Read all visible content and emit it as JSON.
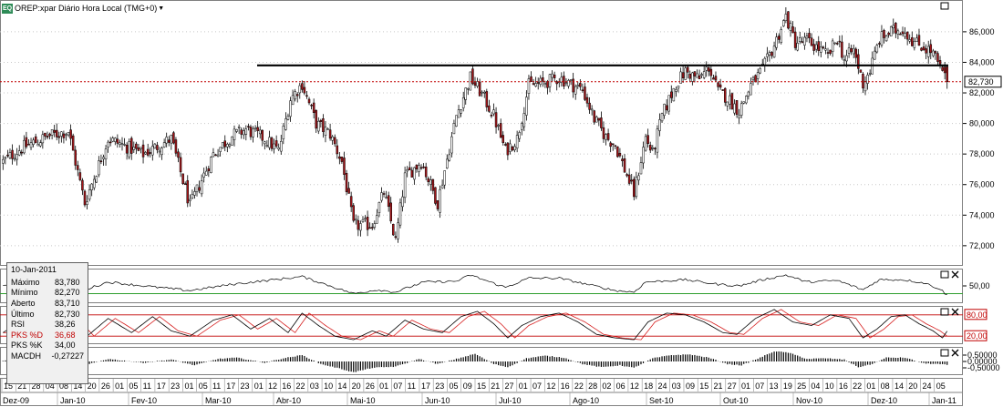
{
  "title": "OREP:xpar Diário Hora Local (TMG+0)",
  "app_icon": "EQ",
  "colors": {
    "bull": "#ffffff",
    "bear": "#a4161a",
    "wick": "#000000",
    "support_line": "#000000",
    "last_price_line": "#c00000",
    "rsi_line": "#000000",
    "rsi_level": "#2e9e2e",
    "stoch_k": "#000000",
    "stoch_d": "#d62020",
    "stoch_levels": "#c00000",
    "macd_hist": "#000000"
  },
  "info": {
    "date": "10-Jan-2011",
    "rows": [
      {
        "label": "Máximo",
        "value": "83,780",
        "highlight": false
      },
      {
        "label": "Mínimo",
        "value": "82,270",
        "highlight": false
      },
      {
        "label": "Aberto",
        "value": "83,710",
        "highlight": false
      },
      {
        "label": "Último",
        "value": "82,730",
        "highlight": false
      },
      {
        "label": "RSI",
        "value": "38,26",
        "highlight": false
      },
      {
        "label": "PKS %D",
        "value": "36,68",
        "highlight": true
      },
      {
        "label": "PKS %K",
        "value": "34,00",
        "highlight": false
      },
      {
        "label": "MACDH",
        "value": "-0,27227",
        "highlight": false
      }
    ]
  },
  "last_price_label": "82,730",
  "chart_data": {
    "type": "candlestick",
    "price_axis": {
      "ylim": [
        70.8,
        87.9
      ],
      "ticks": [
        "72,000",
        "74,000",
        "76,000",
        "78,000",
        "80,000",
        "82,000",
        "84,000",
        "86,000"
      ],
      "tick_values": [
        72,
        74,
        76,
        78,
        80,
        82,
        84,
        86
      ]
    },
    "support_level": 83.8,
    "last_price": 82.73,
    "rsi": {
      "ylim": [
        30,
        70
      ],
      "tick_label": "50,00",
      "tick_value": 50,
      "level": 40
    },
    "stochastic": {
      "ylim": [
        0,
        100
      ],
      "upper_label": "80,00",
      "lower_label": "20,00",
      "upper": 80,
      "lower": 20
    },
    "macd": {
      "ylim": [
        -1.0,
        1.0
      ],
      "tick_labels": [
        "0,50000",
        "0,00000",
        "-0,50000"
      ],
      "tick_values": [
        0.5,
        0.0,
        -0.5
      ]
    },
    "day_labels": [
      "15",
      "21",
      "28",
      "04",
      "08",
      "14",
      "20",
      "26",
      "01",
      "05",
      "11",
      "17",
      "23",
      "01",
      "05",
      "11",
      "17",
      "23",
      "01",
      "12",
      "16",
      "22",
      "03",
      "10",
      "14",
      "20",
      "26",
      "01",
      "07",
      "11",
      "17",
      "23",
      "05",
      "09",
      "15",
      "21",
      "27",
      "01",
      "07",
      "12",
      "16",
      "22",
      "28",
      "02",
      "06",
      "12",
      "18",
      "24",
      "03",
      "09",
      "15",
      "21",
      "27",
      "01",
      "07",
      "13",
      "19",
      "25",
      "04",
      "10",
      "16",
      "22",
      "01",
      "08",
      "14",
      "20",
      "24",
      "05"
    ],
    "month_labels": [
      "Dez-09",
      "Jan-10",
      "Fev-10",
      "Mar-10",
      "Abr-10",
      "Mai-10",
      "Jun-10",
      "Jul-10",
      "Ago-10",
      "Set-10",
      "Out-10",
      "Nov-10",
      "Dez-10",
      "Jan-11"
    ],
    "close_anchors": [
      [
        0,
        77.5
      ],
      [
        8,
        78.4
      ],
      [
        20,
        79.2
      ],
      [
        28,
        79.5
      ],
      [
        35,
        74.8
      ],
      [
        45,
        79.0
      ],
      [
        60,
        78.0
      ],
      [
        72,
        79.0
      ],
      [
        80,
        74.6
      ],
      [
        90,
        78.0
      ],
      [
        98,
        79.2
      ],
      [
        104,
        79.6
      ],
      [
        112,
        79.0
      ],
      [
        118,
        78.2
      ],
      [
        123,
        81.6
      ],
      [
        128,
        82.6
      ],
      [
        134,
        80.0
      ],
      [
        140,
        79.3
      ],
      [
        145,
        77.5
      ],
      [
        150,
        73.3
      ],
      [
        158,
        73.4
      ],
      [
        163,
        75.5
      ],
      [
        168,
        72.3
      ],
      [
        172,
        76.5
      ],
      [
        179,
        77.5
      ],
      [
        186,
        74.8
      ],
      [
        194,
        80.5
      ],
      [
        200,
        83.0
      ],
      [
        205,
        81.9
      ],
      [
        210,
        80.5
      ],
      [
        215,
        78.2
      ],
      [
        220,
        79.0
      ],
      [
        225,
        82.5
      ],
      [
        230,
        82.6
      ],
      [
        238,
        83.0
      ],
      [
        244,
        82.5
      ],
      [
        248,
        82.2
      ],
      [
        253,
        80.3
      ],
      [
        258,
        79.1
      ],
      [
        262,
        78.6
      ],
      [
        266,
        77.0
      ],
      [
        270,
        75.4
      ],
      [
        275,
        79.1
      ],
      [
        278,
        78.0
      ],
      [
        282,
        80.5
      ],
      [
        288,
        82.6
      ],
      [
        292,
        83.4
      ],
      [
        298,
        82.9
      ],
      [
        302,
        83.7
      ],
      [
        306,
        82.1
      ],
      [
        310,
        81.7
      ],
      [
        315,
        80.8
      ],
      [
        320,
        82.5
      ],
      [
        325,
        83.5
      ],
      [
        330,
        85.1
      ],
      [
        335,
        87.0
      ],
      [
        339,
        85.3
      ],
      [
        344,
        85.4
      ],
      [
        349,
        84.9
      ],
      [
        353,
        84.4
      ],
      [
        357,
        85.6
      ],
      [
        360,
        84.2
      ],
      [
        364,
        84.8
      ],
      [
        368,
        82.6
      ],
      [
        371,
        83.5
      ],
      [
        375,
        85.5
      ],
      [
        380,
        86.0
      ],
      [
        385,
        86.2
      ],
      [
        390,
        85.3
      ],
      [
        394,
        85.0
      ],
      [
        398,
        84.6
      ],
      [
        401,
        83.6
      ],
      [
        404,
        82.73
      ]
    ],
    "rsi_anchors": [
      [
        0,
        51
      ],
      [
        20,
        54
      ],
      [
        35,
        45
      ],
      [
        45,
        55
      ],
      [
        60,
        50
      ],
      [
        80,
        44
      ],
      [
        98,
        52
      ],
      [
        128,
        62
      ],
      [
        140,
        50
      ],
      [
        150,
        40
      ],
      [
        160,
        45
      ],
      [
        168,
        42
      ],
      [
        180,
        55
      ],
      [
        194,
        56
      ],
      [
        200,
        64
      ],
      [
        215,
        48
      ],
      [
        225,
        60
      ],
      [
        238,
        60
      ],
      [
        253,
        50
      ],
      [
        262,
        44
      ],
      [
        270,
        42
      ],
      [
        275,
        55
      ],
      [
        292,
        58
      ],
      [
        306,
        52
      ],
      [
        315,
        50
      ],
      [
        325,
        58
      ],
      [
        335,
        64
      ],
      [
        344,
        55
      ],
      [
        357,
        57
      ],
      [
        368,
        45
      ],
      [
        375,
        58
      ],
      [
        385,
        58
      ],
      [
        394,
        54
      ],
      [
        401,
        46
      ],
      [
        404,
        38
      ]
    ],
    "stoch_anchors": [
      [
        0,
        30
      ],
      [
        10,
        70
      ],
      [
        20,
        35
      ],
      [
        28,
        75
      ],
      [
        36,
        20
      ],
      [
        45,
        70
      ],
      [
        55,
        30
      ],
      [
        64,
        75
      ],
      [
        72,
        35
      ],
      [
        80,
        20
      ],
      [
        90,
        65
      ],
      [
        98,
        80
      ],
      [
        106,
        40
      ],
      [
        114,
        70
      ],
      [
        122,
        30
      ],
      [
        128,
        85
      ],
      [
        135,
        50
      ],
      [
        142,
        20
      ],
      [
        150,
        10
      ],
      [
        158,
        35
      ],
      [
        164,
        20
      ],
      [
        172,
        65
      ],
      [
        180,
        40
      ],
      [
        188,
        30
      ],
      [
        196,
        75
      ],
      [
        203,
        90
      ],
      [
        210,
        55
      ],
      [
        216,
        15
      ],
      [
        222,
        50
      ],
      [
        230,
        75
      ],
      [
        238,
        85
      ],
      [
        246,
        60
      ],
      [
        254,
        25
      ],
      [
        262,
        15
      ],
      [
        270,
        10
      ],
      [
        276,
        60
      ],
      [
        284,
        85
      ],
      [
        292,
        80
      ],
      [
        300,
        60
      ],
      [
        308,
        30
      ],
      [
        314,
        25
      ],
      [
        322,
        70
      ],
      [
        330,
        95
      ],
      [
        338,
        60
      ],
      [
        346,
        50
      ],
      [
        354,
        80
      ],
      [
        362,
        70
      ],
      [
        368,
        15
      ],
      [
        374,
        40
      ],
      [
        380,
        75
      ],
      [
        386,
        80
      ],
      [
        392,
        55
      ],
      [
        398,
        35
      ],
      [
        402,
        15
      ],
      [
        404,
        34
      ]
    ],
    "macd_anchors": [
      [
        0,
        0.05
      ],
      [
        10,
        0.2
      ],
      [
        20,
        -0.1
      ],
      [
        28,
        0.15
      ],
      [
        36,
        -0.25
      ],
      [
        45,
        0.2
      ],
      [
        60,
        -0.1
      ],
      [
        72,
        0.15
      ],
      [
        82,
        -0.3
      ],
      [
        92,
        0.2
      ],
      [
        100,
        0.3
      ],
      [
        112,
        -0.1
      ],
      [
        120,
        0.25
      ],
      [
        128,
        0.5
      ],
      [
        136,
        -0.2
      ],
      [
        144,
        -0.55
      ],
      [
        150,
        -0.85
      ],
      [
        158,
        -0.5
      ],
      [
        168,
        -0.4
      ],
      [
        178,
        0.2
      ],
      [
        186,
        -0.2
      ],
      [
        196,
        0.3
      ],
      [
        202,
        0.6
      ],
      [
        210,
        -0.2
      ],
      [
        216,
        -0.45
      ],
      [
        224,
        0.25
      ],
      [
        232,
        0.45
      ],
      [
        240,
        0.3
      ],
      [
        248,
        -0.2
      ],
      [
        256,
        -0.45
      ],
      [
        264,
        -0.3
      ],
      [
        270,
        -0.5
      ],
      [
        278,
        0.25
      ],
      [
        286,
        0.5
      ],
      [
        294,
        0.55
      ],
      [
        302,
        0.3
      ],
      [
        310,
        -0.2
      ],
      [
        316,
        -0.3
      ],
      [
        324,
        0.3
      ],
      [
        330,
        0.8
      ],
      [
        336,
        0.7
      ],
      [
        344,
        0.2
      ],
      [
        352,
        0.25
      ],
      [
        360,
        0.15
      ],
      [
        366,
        -0.45
      ],
      [
        372,
        -0.2
      ],
      [
        378,
        0.3
      ],
      [
        386,
        0.3
      ],
      [
        394,
        -0.15
      ],
      [
        400,
        -0.2
      ],
      [
        404,
        -0.27
      ]
    ],
    "bars": 405
  }
}
